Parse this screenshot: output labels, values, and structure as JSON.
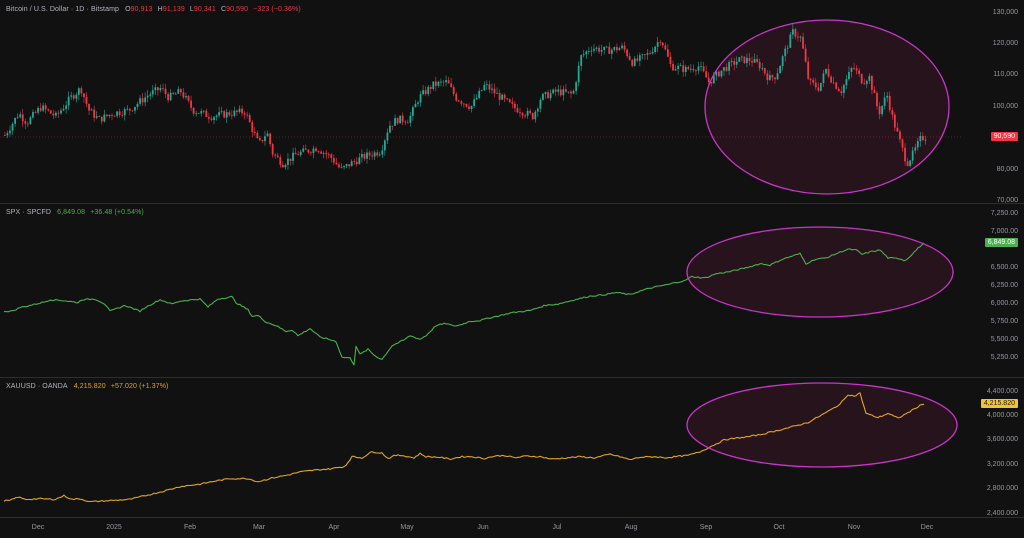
{
  "panes": [
    {
      "id": "btc",
      "legend": {
        "symbol": "Bitcoin / U.S. Dollar · 1D · Bitstamp",
        "o_label": "O",
        "o": "90,913",
        "h_label": "H",
        "h": "91,139",
        "l_label": "L",
        "l": "90,341",
        "c_label": "C",
        "c": "90,590",
        "change": "−323 (−0.36%)",
        "color": "#f23645"
      },
      "price_axis": [
        "130,000",
        "120,000",
        "110,000",
        "100,000",
        "80,000",
        "70,000"
      ],
      "last_price": "90,590",
      "badge_color": "#f23645"
    },
    {
      "id": "spx",
      "legend": {
        "symbol": "SPX · SPCFD",
        "value": "6,849.08",
        "change": "+36.48 (+0.54%)",
        "color": "#4caf50"
      },
      "price_axis": [
        "7,250.00",
        "7,000.00",
        "6,500.00",
        "6,250.00",
        "6,000.00",
        "5,750.00",
        "5,500.00",
        "5,250.00"
      ],
      "last_price": "6,849.08",
      "badge_color": "#4caf50"
    },
    {
      "id": "xau",
      "legend": {
        "symbol": "XAUUSD · OANDA",
        "value": "4,215.820",
        "change": "+57.020 (+1.37%)",
        "color": "#e0a526"
      },
      "price_axis": [
        "4,400.000",
        "4,000.000",
        "3,600.000",
        "3,200.000",
        "2,800.000",
        "2,400.000"
      ],
      "last_price": "4,215.820",
      "badge_color": "#f2c232"
    }
  ],
  "time_axis": [
    "Dec",
    "2025",
    "Feb",
    "Mar",
    "Apr",
    "May",
    "Jun",
    "Jul",
    "Aug",
    "Sep",
    "Oct",
    "Nov",
    "Dec"
  ],
  "colors": {
    "background": "#111112",
    "up": "#22ab94",
    "down": "#f23645",
    "spx_line": "#4caf50",
    "xau_line": "#e0a526",
    "highlight_ellipse": "#c836c8",
    "highlight_fill": "#2a141d"
  },
  "chart_data": [
    {
      "type": "candlestick",
      "title": "Bitcoin / U.S. Dollar · 1D · Bitstamp",
      "ylim": [
        70000,
        130000
      ],
      "x": [
        "Dec",
        "2025",
        "Feb",
        "Mar",
        "Apr",
        "May",
        "Jun",
        "Jul",
        "Aug",
        "Sep",
        "Oct",
        "Nov",
        "Dec"
      ],
      "approx_close_by_month": {
        "Dec": 98000,
        "Jan": 100000,
        "Feb": 96000,
        "Mar": 84000,
        "Apr": 86000,
        "May": 105000,
        "Jun": 107000,
        "Jul": 118000,
        "Aug": 114000,
        "Sep": 112000,
        "Oct": 110000,
        "Nov": 91000
      },
      "last": 90590,
      "annotations": [
        "ellipse highlighting Sep–Dec decline from ~126,000 peak to ~84,000 low"
      ]
    },
    {
      "type": "line",
      "title": "SPX · SPCFD",
      "ylim": [
        5100,
        7350
      ],
      "approx_values_by_month": {
        "Dec": 6050,
        "Jan": 6050,
        "Feb": 6100,
        "Mar": 5650,
        "Apr": 5500,
        "May": 5900,
        "Jun": 6100,
        "Jul": 6300,
        "Aug": 6450,
        "Sep": 6600,
        "Oct": 6700,
        "Nov": 6750
      },
      "last": 6849.08,
      "annotations": [
        "ellipse highlighting Sep–Dec steady uptrend"
      ]
    },
    {
      "type": "line",
      "title": "XAUUSD · OANDA",
      "ylim": [
        2300,
        4500
      ],
      "approx_values_by_month": {
        "Dec": 2650,
        "Jan": 2700,
        "Feb": 2900,
        "Mar": 3000,
        "Apr": 3300,
        "May": 3300,
        "Jun": 3350,
        "Jul": 3350,
        "Aug": 3400,
        "Sep": 3700,
        "Oct": 4200,
        "Nov": 4050
      },
      "last": 4215.82,
      "annotations": [
        "ellipse highlighting Sep–Dec rally to ~4,380 peak"
      ]
    }
  ]
}
